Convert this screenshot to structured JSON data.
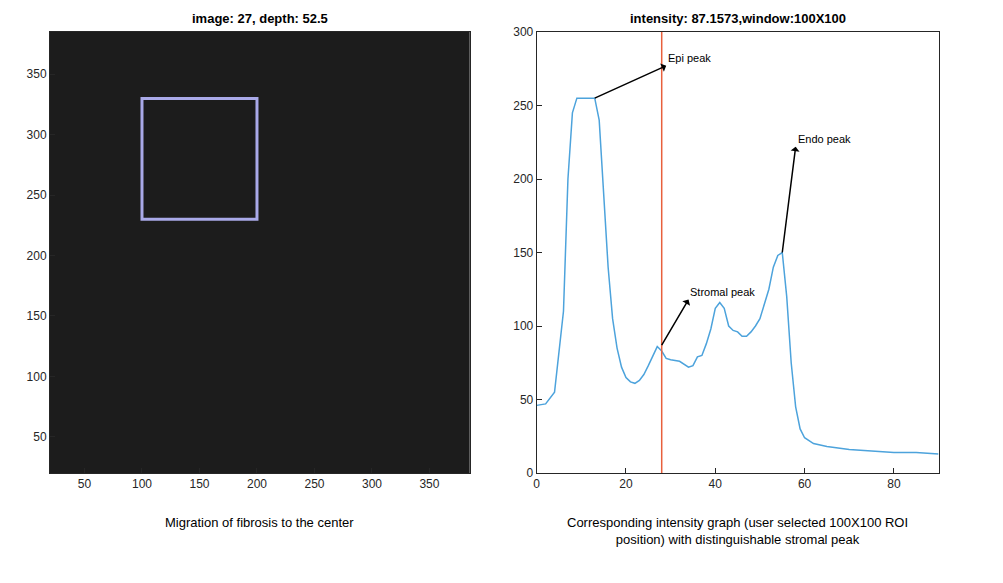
{
  "chart_data": [
    {
      "type": "image",
      "title": "image: 27, depth: 52.5",
      "caption": "Migration of fibrosis to the center",
      "xlim": [
        20,
        385
      ],
      "ylim": [
        20,
        385
      ],
      "xticks": [
        50,
        100,
        150,
        200,
        250,
        300,
        350
      ],
      "yticks": [
        50,
        100,
        150,
        200,
        250,
        300,
        350
      ],
      "roi": {
        "x": [
          100,
          200
        ],
        "y": [
          230,
          330
        ]
      },
      "color": "#a9a9e8",
      "grid": false
    },
    {
      "type": "line",
      "title": "intensity: 87.1573,window:100X100",
      "caption": "Corresponding intensity graph (user selected 100X100 ROI position) with distinguishable stromal peak",
      "x": [
        0,
        2,
        4,
        6,
        7,
        8,
        9,
        10,
        11,
        12,
        13,
        14,
        15,
        16,
        17,
        18,
        19,
        20,
        21,
        22,
        23,
        24,
        25,
        26,
        27,
        28,
        29,
        30,
        32,
        34,
        35,
        36,
        37,
        38,
        39,
        40,
        41,
        42,
        43,
        44,
        45,
        46,
        47,
        48,
        49,
        50,
        51,
        52,
        53,
        54,
        55,
        56,
        57,
        58,
        59,
        60,
        62,
        65,
        70,
        75,
        80,
        85,
        90
      ],
      "series": [
        {
          "name": "intensity",
          "color": "#4da3dc",
          "values": [
            46,
            47,
            55,
            110,
            200,
            245,
            255,
            255,
            255,
            255,
            255,
            240,
            190,
            140,
            105,
            85,
            72,
            65,
            62,
            61,
            63,
            67,
            73,
            80,
            86,
            83,
            78,
            77,
            76,
            72,
            73,
            79,
            80,
            88,
            98,
            112,
            116,
            112,
            100,
            97,
            96,
            93,
            93,
            96,
            100,
            105,
            115,
            125,
            140,
            148,
            150,
            120,
            75,
            45,
            30,
            24,
            20,
            18,
            16,
            15,
            14,
            14,
            13
          ]
        }
      ],
      "xlim": [
        0,
        90
      ],
      "ylim": [
        0,
        300
      ],
      "xticks": [
        0,
        20,
        40,
        60,
        80
      ],
      "yticks": [
        0,
        50,
        100,
        150,
        200,
        250,
        300
      ],
      "vline": {
        "x": 28,
        "color": "#e8603c"
      },
      "annotations": [
        {
          "text": "Epi peak",
          "x": 13,
          "y": 255,
          "text_x": 29,
          "text_y": 277
        },
        {
          "text": "Stromal peak",
          "x": 28,
          "y": 87,
          "text_x": 34,
          "text_y": 118
        },
        {
          "text": "Endo peak",
          "x": 55,
          "y": 150,
          "text_x": 58,
          "text_y": 222
        }
      ],
      "grid": false
    }
  ]
}
